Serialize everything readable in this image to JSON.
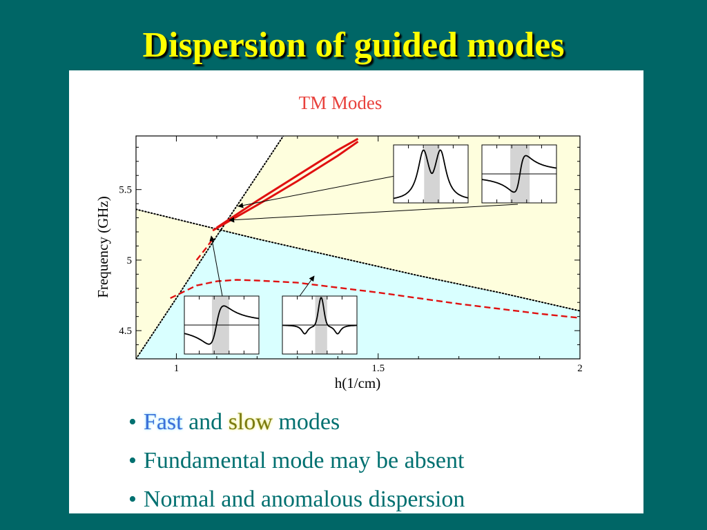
{
  "slide": {
    "title": "Dispersion of guided modes",
    "bullets": [
      {
        "prefix": "•",
        "fast": "Fast",
        "and": "and",
        "slow": "slow",
        "rest": "modes"
      },
      {
        "prefix": "•",
        "text": "Fundamental mode may be absent"
      },
      {
        "prefix": "•",
        "text": "Normal and anomalous dispersion"
      }
    ]
  },
  "colors": {
    "background": "#006666",
    "title": "#ffff00",
    "chart_title": "#e8413c",
    "fast_region": "#d9ffff",
    "slow_region": "#fefedd",
    "mode_curve": "#e01010",
    "bullet_text": "#007070",
    "inset_shade": "#d4d4d4"
  },
  "chart_data": {
    "type": "line",
    "title": "TM Modes",
    "xlabel": "h(1/cm)",
    "ylabel": "Frequency (GHz)",
    "xlim": [
      0.9,
      2.0
    ],
    "ylim": [
      4.3,
      5.88
    ],
    "xticks": [
      "1",
      "1.5",
      "2"
    ],
    "yticks": [
      "4.5",
      "5",
      "5.5"
    ],
    "xtick_values": [
      1,
      1.5,
      2
    ],
    "ytick_values": [
      4.5,
      5,
      5.5
    ],
    "grid": false,
    "regions": [
      {
        "kind": "fast",
        "color": "#d9ffff"
      },
      {
        "kind": "slow",
        "color": "#fefedd"
      }
    ],
    "series": [
      {
        "style": "dotted",
        "color": "#000000",
        "x": [
          0.9,
          1.0,
          1.1,
          1.2,
          1.3
        ],
        "y": [
          4.3,
          4.73,
          5.17,
          5.6,
          6.03
        ]
      },
      {
        "style": "dotted",
        "color": "#000000",
        "x": [
          0.9,
          1.0,
          1.1,
          1.2,
          1.4,
          1.6,
          1.8,
          2.0
        ],
        "y": [
          5.36,
          5.29,
          5.22,
          5.15,
          5.02,
          4.89,
          4.77,
          4.64
        ]
      },
      {
        "style": "solid",
        "color": "#e01010",
        "x": [
          1.1,
          1.2,
          1.3,
          1.35,
          1.4,
          1.45
        ],
        "y": [
          5.23,
          5.42,
          5.6,
          5.69,
          5.78,
          5.86
        ]
      },
      {
        "style": "solid",
        "color": "#e01010",
        "x": [
          1.09,
          1.2,
          1.3,
          1.35,
          1.4,
          1.45
        ],
        "y": [
          5.21,
          5.39,
          5.56,
          5.65,
          5.74,
          5.84
        ]
      },
      {
        "style": "dashed",
        "color": "#e01010",
        "x": [
          1.05,
          1.075,
          1.09
        ],
        "y": [
          5.0,
          5.09,
          5.15
        ]
      },
      {
        "style": "dashed",
        "color": "#e01010",
        "x": [
          0.985,
          1.05,
          1.1,
          1.15,
          1.2,
          1.3,
          1.5,
          1.7,
          1.9,
          2.0
        ],
        "y": [
          4.73,
          4.82,
          4.85,
          4.86,
          4.855,
          4.84,
          4.77,
          4.69,
          4.62,
          4.59
        ]
      }
    ]
  }
}
